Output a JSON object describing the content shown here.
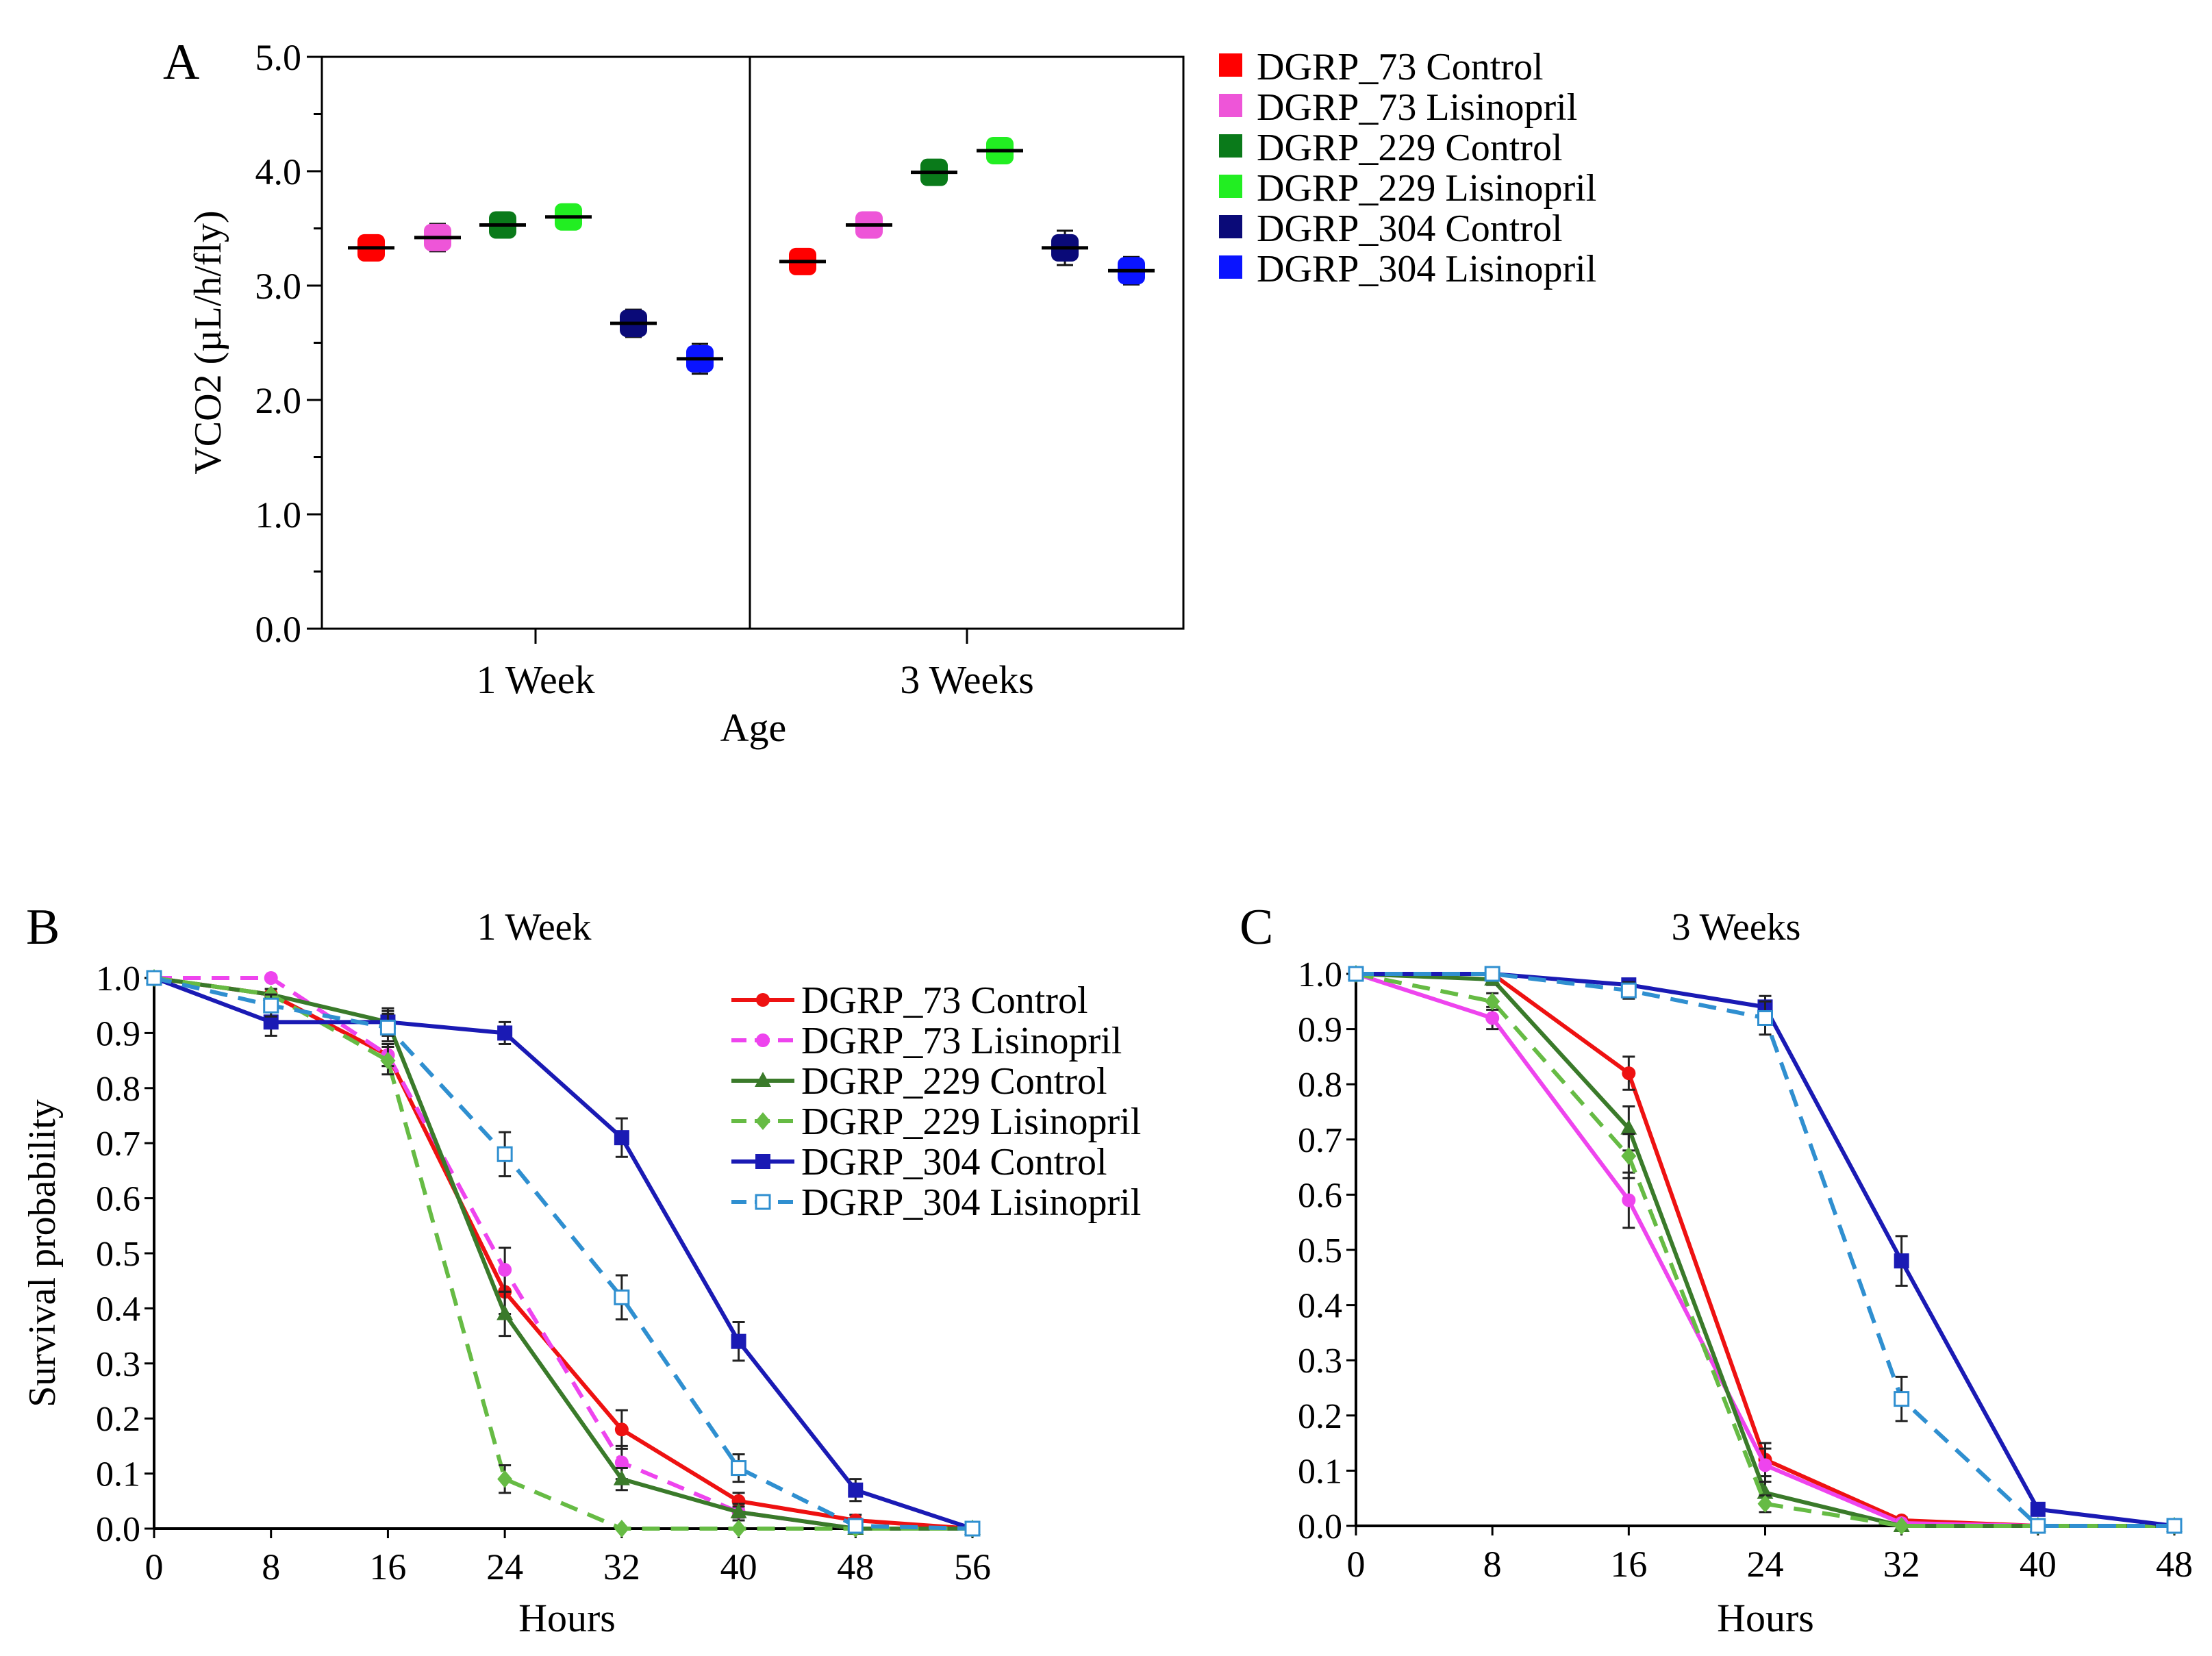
{
  "chart_data": [
    {
      "panel": "A",
      "type": "scatter",
      "panel_label": "A",
      "xlabel": "Age",
      "ylabel": "VCO2 (µL/h/fly)",
      "ylim": [
        0,
        5
      ],
      "yticks": [
        "0.0",
        "1.0",
        "2.0",
        "3.0",
        "4.0",
        "5.0"
      ],
      "groups": [
        "1 Week",
        "3 Weeks"
      ],
      "legend": [
        {
          "name": "DGRP_73 Control",
          "color": "#ff0000"
        },
        {
          "name": "DGRP_73 Lisinopril",
          "color": "#ee55d8"
        },
        {
          "name": "DGRP_229 Control",
          "color": "#0a7a1a"
        },
        {
          "name": "DGRP_229 Lisinopril",
          "color": "#22ee22"
        },
        {
          "name": "DGRP_304 Control",
          "color": "#0a0a78"
        },
        {
          "name": "DGRP_304 Lisinopril",
          "color": "#0a14ff"
        }
      ],
      "series": [
        {
          "name": "DGRP_73 Control",
          "values": [
            3.33,
            3.21
          ],
          "err": [
            0.1,
            0.08
          ]
        },
        {
          "name": "DGRP_73 Lisinopril",
          "values": [
            3.42,
            3.53
          ],
          "err": [
            0.12,
            0.1
          ]
        },
        {
          "name": "DGRP_229 Control",
          "values": [
            3.53,
            3.99
          ],
          "err": [
            0.07,
            0.07
          ]
        },
        {
          "name": "DGRP_229 Lisinopril",
          "values": [
            3.6,
            4.18
          ],
          "err": [
            0.08,
            0.06
          ]
        },
        {
          "name": "DGRP_304 Control",
          "values": [
            2.67,
            3.33
          ],
          "err": [
            0.12,
            0.15
          ]
        },
        {
          "name": "DGRP_304 Lisinopril",
          "values": [
            2.36,
            3.13
          ],
          "err": [
            0.13,
            0.12
          ]
        }
      ]
    },
    {
      "panel": "B",
      "type": "line",
      "panel_label": "B",
      "title": "1 Week",
      "xlabel": "Hours",
      "ylabel": "Survival probability",
      "x": [
        0,
        8,
        16,
        24,
        32,
        40,
        48,
        56
      ],
      "xlim": [
        0,
        56
      ],
      "ylim": [
        0,
        1
      ],
      "yticks": [
        "0.0",
        "0.1",
        "0.2",
        "0.3",
        "0.4",
        "0.5",
        "0.6",
        "0.7",
        "0.8",
        "0.9",
        "1.0"
      ],
      "xticks": [
        "0",
        "8",
        "16",
        "24",
        "32",
        "40",
        "48",
        "56"
      ],
      "series": [
        {
          "name": "DGRP_73 Control",
          "color": "#ee1111",
          "dash": false,
          "marker": "circle",
          "values": [
            1.0,
            0.97,
            0.86,
            0.43,
            0.18,
            0.05,
            0.015,
            0.0
          ],
          "err": [
            0,
            0,
            0.02,
            0.04,
            0.035,
            0.015,
            0.01,
            0
          ]
        },
        {
          "name": "DGRP_73 Lisinopril",
          "color": "#ee44ee",
          "dash": true,
          "marker": "circle",
          "values": [
            1.0,
            1.0,
            0.86,
            0.47,
            0.12,
            0.03,
            0.0,
            0.0
          ],
          "err": [
            0,
            0,
            0.02,
            0.04,
            0.03,
            0.015,
            0,
            0
          ]
        },
        {
          "name": "DGRP_229 Control",
          "color": "#3a7a2a",
          "dash": false,
          "marker": "triangle",
          "values": [
            1.0,
            0.97,
            0.92,
            0.39,
            0.09,
            0.03,
            0.0,
            0.0
          ],
          "err": [
            0,
            0.01,
            0.02,
            0.04,
            0.02,
            0.01,
            0,
            0
          ]
        },
        {
          "name": "DGRP_229 Lisinopril",
          "color": "#66bb44",
          "dash": true,
          "marker": "diamond",
          "values": [
            1.0,
            0.97,
            0.85,
            0.09,
            0.0,
            0.0,
            0.0,
            0.0
          ],
          "err": [
            0,
            0.01,
            0.025,
            0.025,
            0,
            0,
            0,
            0
          ]
        },
        {
          "name": "DGRP_304 Control",
          "color": "#1a1ab4",
          "dash": false,
          "marker": "square",
          "values": [
            1.0,
            0.92,
            0.92,
            0.9,
            0.71,
            0.34,
            0.07,
            0.0
          ],
          "err": [
            0,
            0.025,
            0.025,
            0.02,
            0.035,
            0.035,
            0.02,
            0
          ]
        },
        {
          "name": "DGRP_304 Lisinopril",
          "color": "#2f8fd0",
          "dash": true,
          "marker": "open-square",
          "values": [
            1.0,
            0.95,
            0.91,
            0.68,
            0.42,
            0.11,
            0.005,
            0.0
          ],
          "err": [
            0,
            0.02,
            0.025,
            0.04,
            0.04,
            0.025,
            0.005,
            0
          ]
        }
      ],
      "legend": [
        {
          "name": "DGRP_73 Control"
        },
        {
          "name": "DGRP_73 Lisinopril"
        },
        {
          "name": "DGRP_229 Control"
        },
        {
          "name": "DGRP_229 Lisinopril"
        },
        {
          "name": "DGRP_304 Control"
        },
        {
          "name": "DGRP_304 Lisinopril"
        }
      ]
    },
    {
      "panel": "C",
      "type": "line",
      "panel_label": "C",
      "title": "3 Weeks",
      "xlabel": "Hours",
      "ylabel": "",
      "x": [
        0,
        8,
        16,
        24,
        32,
        40,
        48
      ],
      "xlim": [
        0,
        48
      ],
      "ylim": [
        0,
        1
      ],
      "yticks": [
        "0.0",
        "0.1",
        "0.2",
        "0.3",
        "0.4",
        "0.5",
        "0.6",
        "0.7",
        "0.8",
        "0.9",
        "1.0"
      ],
      "xticks": [
        "0",
        "8",
        "16",
        "24",
        "32",
        "40",
        "48"
      ],
      "series": [
        {
          "name": "DGRP_73 Control",
          "color": "#ee1111",
          "dash": false,
          "marker": "circle",
          "values": [
            1.0,
            1.0,
            0.82,
            0.12,
            0.01,
            0.0,
            0.0
          ],
          "err": [
            0,
            0,
            0.03,
            0.03,
            0.005,
            0,
            0
          ]
        },
        {
          "name": "DGRP_73 Lisinopril",
          "color": "#ee44ee",
          "dash": false,
          "marker": "circle",
          "values": [
            1.0,
            0.92,
            0.59,
            0.11,
            0.005,
            0.0,
            0.0
          ],
          "err": [
            0,
            0.02,
            0.05,
            0.03,
            0.005,
            0,
            0
          ]
        },
        {
          "name": "DGRP_229 Control",
          "color": "#3a7a2a",
          "dash": false,
          "marker": "triangle",
          "values": [
            1.0,
            0.99,
            0.72,
            0.06,
            0.0,
            0.0,
            0.0
          ],
          "err": [
            0,
            0.01,
            0.04,
            0.02,
            0,
            0,
            0
          ]
        },
        {
          "name": "DGRP_229 Lisinopril",
          "color": "#66bb44",
          "dash": true,
          "marker": "diamond",
          "values": [
            1.0,
            0.95,
            0.67,
            0.04,
            0.0,
            0.0,
            0.0
          ],
          "err": [
            0,
            0.015,
            0.04,
            0.015,
            0,
            0,
            0
          ]
        },
        {
          "name": "DGRP_304 Control",
          "color": "#1a1ab4",
          "dash": false,
          "marker": "square",
          "values": [
            1.0,
            1.0,
            0.98,
            0.94,
            0.48,
            0.03,
            0.0
          ],
          "err": [
            0,
            0,
            0.01,
            0.02,
            0.045,
            0.01,
            0
          ]
        },
        {
          "name": "DGRP_304 Lisinopril",
          "color": "#2f8fd0",
          "dash": true,
          "marker": "open-square",
          "values": [
            1.0,
            1.0,
            0.97,
            0.92,
            0.23,
            0.0,
            0.0
          ],
          "err": [
            0,
            0,
            0.015,
            0.03,
            0.04,
            0,
            0
          ]
        }
      ]
    }
  ]
}
